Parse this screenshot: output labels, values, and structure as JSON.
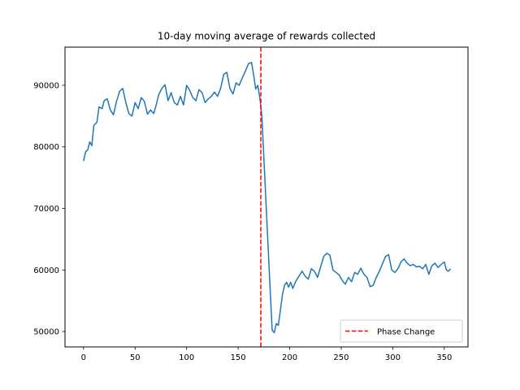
{
  "chart_data": {
    "type": "line",
    "title": "10-day moving average of rewards collected",
    "xlabel": "",
    "ylabel": "",
    "xlim": [
      -18,
      373
    ],
    "ylim": [
      47500,
      96200
    ],
    "xticks": [
      0,
      50,
      100,
      150,
      200,
      250,
      300,
      350
    ],
    "yticks": [
      50000,
      60000,
      70000,
      80000,
      90000
    ],
    "grid": false,
    "legend_position": "lower-right",
    "series": [
      {
        "color": "#1f77b4",
        "points": [
          [
            0,
            77700
          ],
          [
            2,
            79200
          ],
          [
            4,
            79500
          ],
          [
            6,
            80800
          ],
          [
            8,
            80200
          ],
          [
            10,
            83500
          ],
          [
            13,
            84000
          ],
          [
            15,
            86500
          ],
          [
            18,
            86200
          ],
          [
            20,
            87500
          ],
          [
            23,
            87800
          ],
          [
            26,
            86000
          ],
          [
            29,
            85200
          ],
          [
            32,
            87400
          ],
          [
            35,
            89000
          ],
          [
            38,
            89500
          ],
          [
            41,
            87200
          ],
          [
            44,
            85400
          ],
          [
            47,
            85000
          ],
          [
            50,
            87200
          ],
          [
            53,
            86200
          ],
          [
            56,
            88000
          ],
          [
            59,
            87400
          ],
          [
            62,
            85300
          ],
          [
            65,
            86000
          ],
          [
            68,
            85400
          ],
          [
            70,
            86500
          ],
          [
            73,
            88500
          ],
          [
            76,
            89500
          ],
          [
            79,
            90100
          ],
          [
            82,
            87500
          ],
          [
            85,
            88800
          ],
          [
            88,
            87200
          ],
          [
            91,
            86800
          ],
          [
            94,
            88200
          ],
          [
            97,
            86800
          ],
          [
            100,
            90000
          ],
          [
            103,
            89200
          ],
          [
            106,
            88000
          ],
          [
            109,
            87500
          ],
          [
            112,
            89300
          ],
          [
            115,
            88800
          ],
          [
            118,
            87200
          ],
          [
            121,
            87800
          ],
          [
            124,
            88200
          ],
          [
            127,
            88900
          ],
          [
            130,
            88200
          ],
          [
            133,
            89500
          ],
          [
            136,
            91800
          ],
          [
            139,
            92100
          ],
          [
            142,
            89500
          ],
          [
            145,
            88600
          ],
          [
            148,
            90400
          ],
          [
            151,
            90000
          ],
          [
            154,
            91200
          ],
          [
            157,
            92300
          ],
          [
            160,
            93500
          ],
          [
            163,
            93700
          ],
          [
            165,
            91700
          ],
          [
            167,
            89400
          ],
          [
            169,
            90000
          ],
          [
            171,
            88000
          ],
          [
            173,
            85000
          ],
          [
            175,
            78000
          ],
          [
            177,
            71000
          ],
          [
            179,
            64000
          ],
          [
            181,
            57000
          ],
          [
            183,
            50200
          ],
          [
            185,
            49800
          ],
          [
            187,
            51300
          ],
          [
            189,
            51000
          ],
          [
            191,
            53500
          ],
          [
            193,
            56000
          ],
          [
            195,
            57500
          ],
          [
            197,
            58000
          ],
          [
            199,
            57200
          ],
          [
            201,
            58000
          ],
          [
            203,
            57000
          ],
          [
            206,
            58200
          ],
          [
            209,
            59000
          ],
          [
            212,
            59800
          ],
          [
            215,
            59000
          ],
          [
            218,
            58500
          ],
          [
            221,
            60200
          ],
          [
            224,
            59800
          ],
          [
            227,
            58800
          ],
          [
            230,
            60500
          ],
          [
            233,
            62200
          ],
          [
            236,
            62700
          ],
          [
            239,
            62400
          ],
          [
            242,
            60000
          ],
          [
            245,
            59600
          ],
          [
            248,
            59200
          ],
          [
            251,
            58300
          ],
          [
            254,
            57700
          ],
          [
            257,
            58800
          ],
          [
            260,
            58100
          ],
          [
            263,
            59600
          ],
          [
            266,
            59300
          ],
          [
            269,
            60300
          ],
          [
            272,
            59300
          ],
          [
            275,
            58800
          ],
          [
            278,
            57300
          ],
          [
            281,
            57500
          ],
          [
            284,
            58800
          ],
          [
            287,
            59800
          ],
          [
            290,
            61000
          ],
          [
            293,
            62200
          ],
          [
            296,
            62500
          ],
          [
            299,
            60000
          ],
          [
            302,
            59600
          ],
          [
            305,
            60200
          ],
          [
            308,
            61300
          ],
          [
            311,
            61800
          ],
          [
            314,
            61100
          ],
          [
            317,
            60700
          ],
          [
            320,
            60900
          ],
          [
            323,
            60500
          ],
          [
            326,
            60600
          ],
          [
            329,
            60200
          ],
          [
            332,
            60900
          ],
          [
            335,
            59300
          ],
          [
            338,
            60700
          ],
          [
            341,
            61100
          ],
          [
            344,
            60400
          ],
          [
            347,
            60900
          ],
          [
            350,
            61300
          ],
          [
            352,
            60000
          ],
          [
            354,
            59800
          ],
          [
            356,
            60200
          ]
        ]
      }
    ],
    "vlines": [
      {
        "x": 172,
        "color": "#ff0000",
        "style": "dashed",
        "label": "Phase Change"
      }
    ]
  }
}
